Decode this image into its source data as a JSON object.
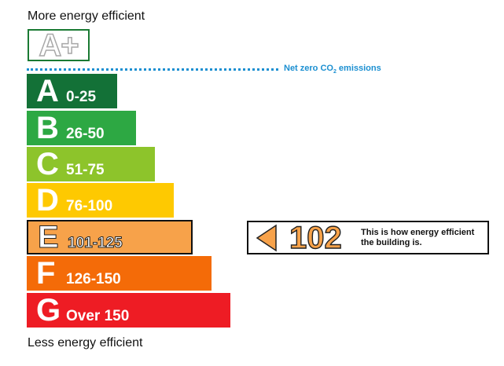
{
  "labels": {
    "top": "More energy efficient",
    "bottom": "Less energy efficient"
  },
  "aplus": {
    "text": "A+"
  },
  "net_zero": {
    "text": "Net zero CO",
    "subscript": "2",
    "suffix": " emissions",
    "color": "#1b8fd1"
  },
  "bands": [
    {
      "letter": "A",
      "range": "0-25",
      "color": "#137137"
    },
    {
      "letter": "B",
      "range": "26-50",
      "color": "#2da843"
    },
    {
      "letter": "C",
      "range": "51-75",
      "color": "#8dc42b"
    },
    {
      "letter": "D",
      "range": "76-100",
      "color": "#fec901"
    },
    {
      "letter": "E",
      "range": "101-125",
      "color": "#f7a24a"
    },
    {
      "letter": "F",
      "range": "126-150",
      "color": "#f46b08"
    },
    {
      "letter": "G",
      "range": "Over 150",
      "color": "#ee1c24"
    }
  ],
  "current": {
    "band": "E",
    "score": "102",
    "caption": "This is how energy efficient the building is.",
    "color": "#f7a24a"
  }
}
